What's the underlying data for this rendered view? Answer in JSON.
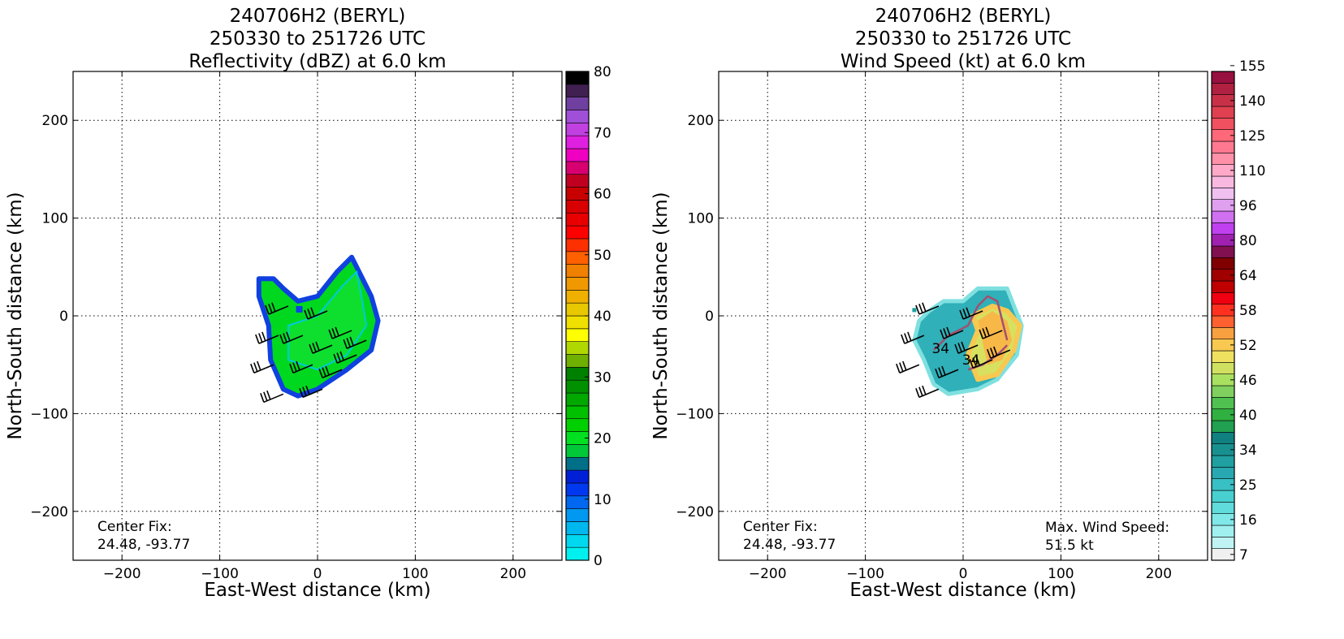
{
  "panels": [
    {
      "title_lines": [
        "240706H2 (BERYL)",
        "250330 to 251726 UTC",
        "Reflectivity (dBZ) at 6.0 km"
      ],
      "center_fix_label": "Center Fix:",
      "center_fix_value": "24.48, -93.77",
      "colorbar": {
        "ticks": [
          "0",
          "10",
          "20",
          "30",
          "40",
          "50",
          "60",
          "70",
          "80"
        ],
        "colors": [
          "#00f0f0",
          "#00d8f0",
          "#00b8f0",
          "#0098f0",
          "#0068f0",
          "#0038f0",
          "#0020d8",
          "#007088",
          "#00c838",
          "#00e020",
          "#00d000",
          "#00c000",
          "#00a800",
          "#009000",
          "#008000",
          "#70b000",
          "#b0d800",
          "#ffff00",
          "#f0e000",
          "#e8c800",
          "#f0b000",
          "#f09800",
          "#f08000",
          "#ff6000",
          "#ff3000",
          "#ff0000",
          "#e80000",
          "#d80000",
          "#c80000",
          "#c00020",
          "#d80070",
          "#f000c0",
          "#e020e0",
          "#c040e0",
          "#a050d8",
          "#7040a0",
          "#402050",
          "#000000"
        ]
      }
    },
    {
      "title_lines": [
        "240706H2 (BERYL)",
        "250330 to 251726 UTC",
        "Wind Speed (kt) at 6.0 km"
      ],
      "center_fix_label": "Center Fix:",
      "center_fix_value": "24.48, -93.77",
      "max_wind_label": "Max. Wind Speed:",
      "max_wind_value": "51.5 kt",
      "contour_labels": [
        "34",
        "34"
      ],
      "colorbar": {
        "ticks": [
          "7",
          "16",
          "25",
          "34",
          "40",
          "46",
          "52",
          "58",
          "64",
          "80",
          "96",
          "110",
          "125",
          "140",
          "155"
        ],
        "colors": [
          "#f0f0f0",
          "#c0f4f4",
          "#a0f0f0",
          "#80e8e8",
          "#60dcdc",
          "#48d0d0",
          "#38c0c4",
          "#28a8b0",
          "#20a0a0",
          "#189090",
          "#108080",
          "#20a050",
          "#30b040",
          "#50c050",
          "#80d060",
          "#a8e060",
          "#d0e060",
          "#f0e060",
          "#f8c850",
          "#f8a040",
          "#ff6030",
          "#ff3020",
          "#f00010",
          "#c00000",
          "#a00000",
          "#800000",
          "#801050",
          "#a020b0",
          "#c040f0",
          "#d070f0",
          "#e0a0f0",
          "#f0c0f0",
          "#f8b8e0",
          "#ffa8c8",
          "#ff90a8",
          "#ff7890",
          "#ff6878",
          "#f05060",
          "#e04050",
          "#c83048",
          "#b02040",
          "#981040"
        ]
      }
    }
  ],
  "chart_data": [
    {
      "type": "heatmap",
      "title": "240706H2 (BERYL) 250330 to 251726 UTC Reflectivity (dBZ) at 6.0 km",
      "xlabel": "East-West distance (km)",
      "ylabel": "North-South distance (km)",
      "xlim": [
        -250,
        250
      ],
      "ylim": [
        -250,
        250
      ],
      "x_ticks": [
        -200,
        -100,
        0,
        100,
        200
      ],
      "y_ticks": [
        -200,
        -100,
        0,
        100,
        200
      ],
      "x_tick_labels": [
        "−200",
        "−100",
        "0",
        "100",
        "200"
      ],
      "y_tick_labels": [
        "−200",
        "−100",
        "0",
        "100",
        "200"
      ],
      "grid": true,
      "colorbar_range": [
        0,
        80
      ],
      "echo_polygon": [
        [
          -60,
          38
        ],
        [
          -45,
          38
        ],
        [
          -35,
          28
        ],
        [
          -20,
          15
        ],
        [
          0,
          20
        ],
        [
          20,
          45
        ],
        [
          35,
          60
        ],
        [
          45,
          40
        ],
        [
          55,
          20
        ],
        [
          62,
          -5
        ],
        [
          55,
          -35
        ],
        [
          30,
          -55
        ],
        [
          0,
          -75
        ],
        [
          -20,
          -82
        ],
        [
          -35,
          -75
        ],
        [
          -48,
          -45
        ],
        [
          -50,
          -10
        ],
        [
          -60,
          20
        ]
      ],
      "wind_barbs": [
        [
          -30,
          10
        ],
        [
          -40,
          -20
        ],
        [
          -45,
          -50
        ],
        [
          -35,
          -80
        ],
        [
          -15,
          -20
        ],
        [
          -5,
          -50
        ],
        [
          5,
          -75
        ],
        [
          10,
          5
        ],
        [
          15,
          -30
        ],
        [
          25,
          -55
        ],
        [
          35,
          -15
        ],
        [
          40,
          -40
        ],
        [
          50,
          -25
        ]
      ]
    },
    {
      "type": "heatmap",
      "title": "240706H2 (BERYL) 250330 to 251726 UTC Wind Speed (kt) at 6.0 km",
      "xlabel": "East-West distance (km)",
      "ylabel": "North-South distance (km)",
      "xlim": [
        -250,
        250
      ],
      "ylim": [
        -250,
        250
      ],
      "x_ticks": [
        -200,
        -100,
        0,
        100,
        200
      ],
      "y_ticks": [
        -200,
        -100,
        0,
        100,
        200
      ],
      "x_tick_labels": [
        "−200",
        "−100",
        "0",
        "100",
        "200"
      ],
      "y_tick_labels": [
        "−200",
        "−100",
        "0",
        "100",
        "200"
      ],
      "grid": true,
      "max_wind_speed_kt": 51.5,
      "wind_polygon": [
        [
          -45,
          -5
        ],
        [
          -35,
          5
        ],
        [
          -20,
          15
        ],
        [
          0,
          15
        ],
        [
          15,
          28
        ],
        [
          45,
          28
        ],
        [
          52,
          10
        ],
        [
          60,
          -10
        ],
        [
          55,
          -40
        ],
        [
          35,
          -65
        ],
        [
          15,
          -75
        ],
        [
          -15,
          -80
        ],
        [
          -30,
          -70
        ],
        [
          -40,
          -45
        ],
        [
          -50,
          -25
        ]
      ],
      "high_wind_polygon": [
        [
          10,
          0
        ],
        [
          30,
          10
        ],
        [
          45,
          5
        ],
        [
          58,
          -10
        ],
        [
          52,
          -35
        ],
        [
          35,
          -60
        ],
        [
          15,
          -65
        ],
        [
          5,
          -40
        ],
        [
          15,
          -15
        ]
      ],
      "contour_34kt": [
        [
          [
            -30,
            -35
          ],
          [
            -15,
            -20
          ],
          [
            5,
            -10
          ],
          [
            15,
            10
          ],
          [
            25,
            20
          ],
          [
            35,
            15
          ],
          [
            40,
            -5
          ],
          [
            45,
            -25
          ]
        ],
        [
          [
            5,
            -55
          ],
          [
            20,
            -50
          ],
          [
            35,
            -40
          ],
          [
            45,
            -30
          ]
        ]
      ],
      "contour_label_positions": [
        [
          -23,
          -38
        ],
        [
          8,
          -50
        ]
      ],
      "wind_barbs": [
        [
          -25,
          10
        ],
        [
          -40,
          -20
        ],
        [
          -45,
          -50
        ],
        [
          -25,
          -75
        ],
        [
          -5,
          -55
        ],
        [
          0,
          -15
        ],
        [
          15,
          -30
        ],
        [
          20,
          5
        ],
        [
          30,
          -45
        ],
        [
          40,
          -15
        ],
        [
          48,
          -35
        ]
      ]
    }
  ]
}
